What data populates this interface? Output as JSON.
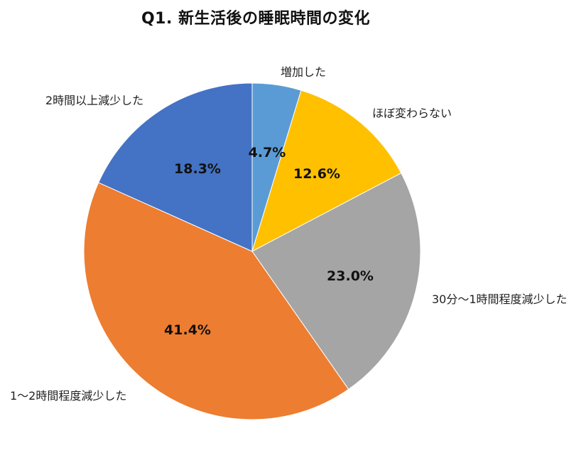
{
  "chart_data": {
    "type": "pie",
    "title": "Q1. 新生活後の睡眠時間の変化",
    "start_angle": "12 o'clock",
    "direction": "clockwise",
    "categories": [
      "増加した",
      "ほぼ変わらない",
      "30分〜1時間程度減少した",
      "1〜2時間程度減少した",
      "2時間以上減少した"
    ],
    "values": [
      4.7,
      12.6,
      23.0,
      41.4,
      18.3
    ],
    "value_labels": [
      "4.7%",
      "12.6%",
      "23.0%",
      "41.4%",
      "18.3%"
    ],
    "colors": [
      "#5b9bd5",
      "#ffc000",
      "#a5a5a5",
      "#ed7d31",
      "#4472c4"
    ],
    "legend": "none (outside category labels)"
  },
  "labels": {
    "title": "Q1. 新生活後の睡眠時間の変化",
    "cat0": "増加した",
    "cat1": "ほぼ変わらない",
    "cat2": "30分〜1時間程度減少した",
    "cat3": "1〜2時間程度減少した",
    "cat4": "2時間以上減少した",
    "pct0": "4.7%",
    "pct1": "12.6%",
    "pct2": "23.0%",
    "pct3": "41.4%",
    "pct4": "18.3%"
  }
}
